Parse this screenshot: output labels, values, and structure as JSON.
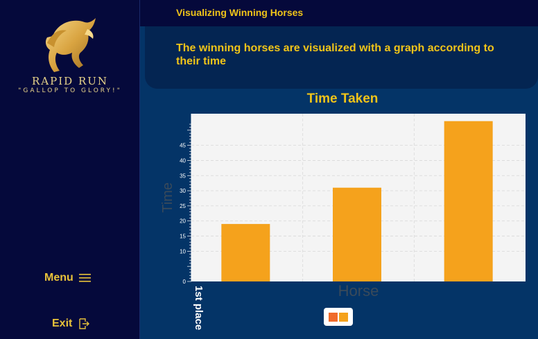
{
  "sidebar": {
    "brand_name": "RAPID RUN",
    "tagline": "\"GALLOP TO GLORY!\"",
    "menu_label": "Menu",
    "exit_label": "Exit"
  },
  "header": {
    "title": "Visualizing Winning Horses"
  },
  "banner": {
    "description": "The winning horses are visualized with a graph according to their time"
  },
  "colors": {
    "accent": "#f0c419",
    "bar": "#f5a21c",
    "legend_swatch_1": "#f06a2a",
    "legend_swatch_2": "#f5a21c"
  },
  "chart_data": {
    "type": "bar",
    "title": "Time Taken",
    "xlabel": "Horse",
    "ylabel": "Time",
    "categories": [
      "1st place",
      "",
      ""
    ],
    "values": [
      19,
      31,
      53
    ],
    "ylim": [
      0,
      55
    ],
    "yticks": [
      0,
      10,
      15,
      20,
      25,
      30,
      35,
      40,
      45
    ],
    "grid": true
  }
}
